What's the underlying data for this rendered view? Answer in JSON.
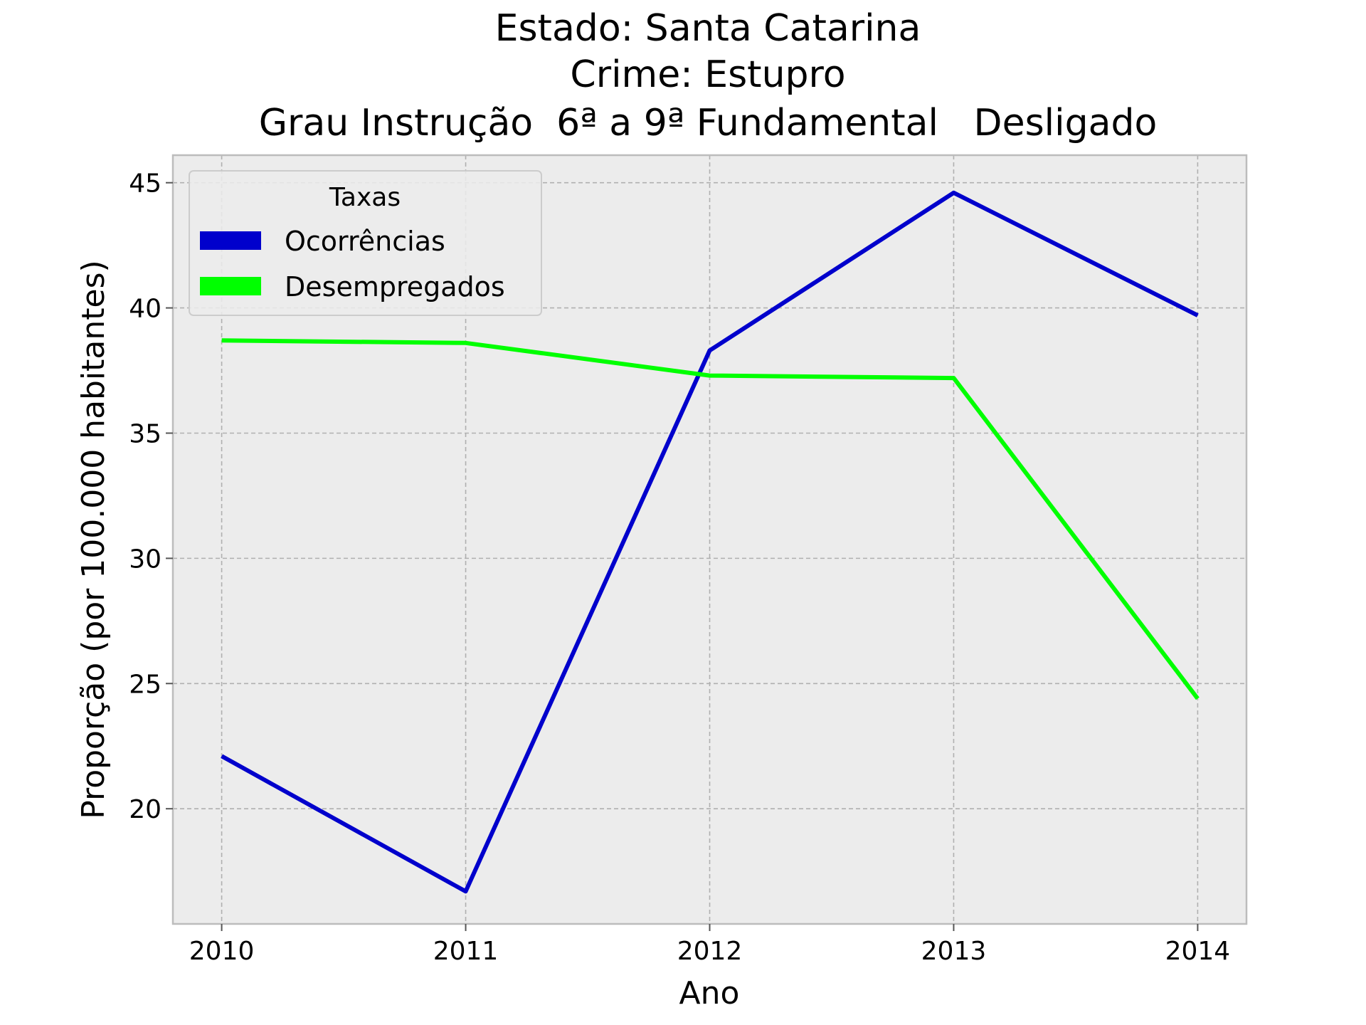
{
  "chart_data": {
    "type": "line",
    "title": [
      "Estado: Santa Catarina",
      "Crime: Estupro",
      "Grau Instrução  6ª a 9ª Fundamental   Desligado"
    ],
    "xlabel": "Ano",
    "ylabel": "Proporção (por 100.000 habitantes)",
    "x": [
      2010,
      2011,
      2012,
      2013,
      2014
    ],
    "x_tick_labels": [
      "2010",
      "2011",
      "2012",
      "2013",
      "2014"
    ],
    "xlim": [
      2009.8,
      2014.2
    ],
    "ylim": [
      15.4,
      46.1
    ],
    "y_ticks": [
      20,
      25,
      30,
      35,
      40,
      45
    ],
    "y_tick_labels": [
      "20",
      "25",
      "30",
      "35",
      "40",
      "45"
    ],
    "grid": true,
    "legend": {
      "title": "Taxas",
      "placement": "upper-left"
    },
    "series": [
      {
        "name": "Ocorrências",
        "color": "#0000cc",
        "values": [
          22.1,
          16.7,
          38.3,
          44.6,
          39.7
        ]
      },
      {
        "name": "Desempregados",
        "color": "#00ff00",
        "values": [
          38.7,
          38.6,
          37.3,
          37.2,
          24.4
        ]
      }
    ]
  },
  "colors": {
    "plot_background": "#ececec",
    "axes_edge": "#bcbcbc"
  }
}
